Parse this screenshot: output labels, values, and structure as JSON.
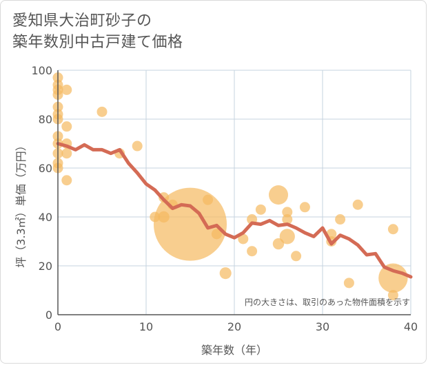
{
  "title_lines": [
    "愛知県大治町砂子の",
    "築年数別中古戸建て価格"
  ],
  "chart_data": {
    "type": "scatter",
    "xlabel": "築年数（年）",
    "ylabel": "坪（3.3㎡）単価（万円）",
    "xlim": [
      0,
      40
    ],
    "ylim": [
      0,
      100
    ],
    "xticks": [
      0,
      10,
      20,
      30,
      40
    ],
    "yticks": [
      0,
      20,
      40,
      60,
      80,
      100
    ],
    "grid": true,
    "note": "円の大きさは、取引のあった物件面積を示す",
    "colors": {
      "bubble": "#f5b95f",
      "line": "#d46b55",
      "grid": "#c5d3df",
      "axis": "#555555"
    },
    "bubbles": [
      {
        "x": 0,
        "y": 97,
        "size": 1
      },
      {
        "x": 0,
        "y": 94,
        "size": 1
      },
      {
        "x": 0,
        "y": 92,
        "size": 1
      },
      {
        "x": 0,
        "y": 90,
        "size": 1
      },
      {
        "x": 0,
        "y": 85,
        "size": 1
      },
      {
        "x": 0,
        "y": 82,
        "size": 1
      },
      {
        "x": 0,
        "y": 80,
        "size": 1
      },
      {
        "x": 0,
        "y": 73,
        "size": 1
      },
      {
        "x": 0,
        "y": 70,
        "size": 1
      },
      {
        "x": 0,
        "y": 66,
        "size": 1
      },
      {
        "x": 0,
        "y": 62,
        "size": 1
      },
      {
        "x": 0,
        "y": 60,
        "size": 1
      },
      {
        "x": 1,
        "y": 92,
        "size": 1
      },
      {
        "x": 1,
        "y": 77,
        "size": 1
      },
      {
        "x": 1,
        "y": 70,
        "size": 1
      },
      {
        "x": 1,
        "y": 66,
        "size": 1
      },
      {
        "x": 1,
        "y": 55,
        "size": 1
      },
      {
        "x": 5,
        "y": 83,
        "size": 1
      },
      {
        "x": 7,
        "y": 66,
        "size": 1
      },
      {
        "x": 9,
        "y": 69,
        "size": 1
      },
      {
        "x": 11,
        "y": 40,
        "size": 1
      },
      {
        "x": 12,
        "y": 48,
        "size": 1
      },
      {
        "x": 12,
        "y": 40,
        "size": 1.2
      },
      {
        "x": 13,
        "y": 45,
        "size": 1
      },
      {
        "x": 15,
        "y": 37,
        "size": 50
      },
      {
        "x": 17,
        "y": 47,
        "size": 1
      },
      {
        "x": 18,
        "y": 33,
        "size": 1
      },
      {
        "x": 19,
        "y": 17,
        "size": 1.3
      },
      {
        "x": 21,
        "y": 31,
        "size": 1
      },
      {
        "x": 22,
        "y": 39,
        "size": 1
      },
      {
        "x": 22,
        "y": 26,
        "size": 1
      },
      {
        "x": 23,
        "y": 43,
        "size": 1
      },
      {
        "x": 25,
        "y": 49,
        "size": 3.5
      },
      {
        "x": 25,
        "y": 29,
        "size": 1.2
      },
      {
        "x": 26,
        "y": 42,
        "size": 1
      },
      {
        "x": 26,
        "y": 39,
        "size": 1
      },
      {
        "x": 26,
        "y": 32,
        "size": 2.2
      },
      {
        "x": 27,
        "y": 24,
        "size": 1
      },
      {
        "x": 28,
        "y": 44,
        "size": 1
      },
      {
        "x": 31,
        "y": 33,
        "size": 1
      },
      {
        "x": 31,
        "y": 30,
        "size": 1
      },
      {
        "x": 32,
        "y": 39,
        "size": 1
      },
      {
        "x": 33,
        "y": 13,
        "size": 1
      },
      {
        "x": 34,
        "y": 45,
        "size": 1
      },
      {
        "x": 38,
        "y": 35,
        "size": 1
      },
      {
        "x": 38,
        "y": 15,
        "size": 8
      },
      {
        "x": 38,
        "y": 8,
        "size": 1
      }
    ],
    "trend": {
      "x": [
        0,
        1,
        2,
        3,
        4,
        5,
        6,
        7,
        8,
        9,
        10,
        11,
        12,
        13,
        14,
        15,
        16,
        17,
        18,
        19,
        20,
        21,
        22,
        23,
        24,
        25,
        26,
        27,
        28,
        29,
        30,
        31,
        32,
        33,
        34,
        35,
        36,
        37,
        38,
        39,
        40
      ],
      "y": [
        70,
        69,
        67.5,
        69.5,
        67.5,
        67.5,
        66,
        67.5,
        62,
        58,
        53.5,
        51,
        47,
        43.5,
        45,
        44.5,
        41.5,
        35.5,
        36.5,
        33,
        31.5,
        33.5,
        37.5,
        37,
        38.5,
        36.5,
        37,
        35.5,
        33.5,
        32,
        35.5,
        29,
        32.5,
        31,
        28.5,
        24.5,
        25,
        19.5,
        18,
        17,
        15.5
      ]
    }
  }
}
